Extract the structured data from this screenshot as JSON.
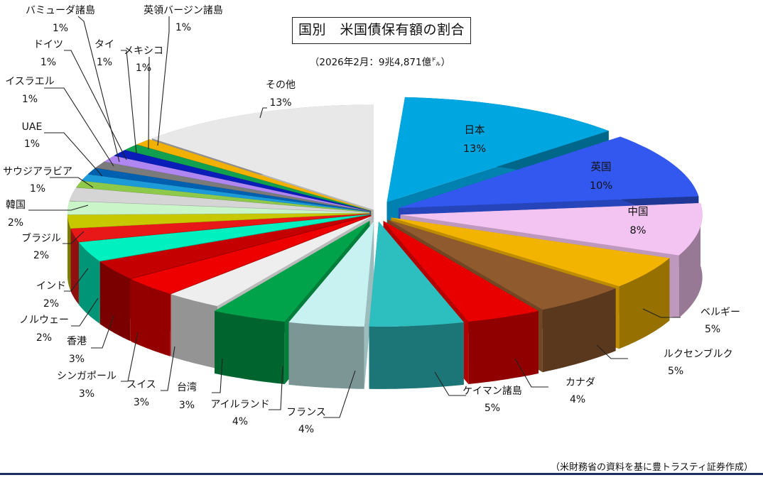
{
  "chart_data": {
    "type": "pie",
    "title": "国別　米国債保有額の割合",
    "subtitle": "（2026年2月：9兆4,871億㌦）",
    "unit": "%",
    "categories": [
      "日本",
      "英国",
      "中国",
      "ベルギー",
      "ルクセンブルク",
      "カナダ",
      "ケイマン諸島",
      "フランス",
      "アイルランド",
      "台湾",
      "スイス",
      "シンガポール",
      "香港",
      "ノルウェー",
      "インド",
      "ブラジル",
      "韓国",
      "サウジアラビア",
      "UAE",
      "イスラエル",
      "ドイツ",
      "タイ",
      "メキシコ",
      "英領バージン諸島",
      "バミューダ諸島",
      "その他"
    ],
    "values": [
      13,
      10,
      8,
      5,
      5,
      4,
      5,
      4,
      4,
      3,
      3,
      3,
      3,
      2,
      2,
      2,
      2,
      1,
      1,
      1,
      1,
      1,
      1,
      1,
      1,
      13
    ],
    "value_labels": [
      "13%",
      "10%",
      "8%",
      "5%",
      "5%",
      "4%",
      "5%",
      "4%",
      "4%",
      "3%",
      "3%",
      "3%",
      "3%",
      "2%",
      "2%",
      "2%",
      "2%",
      "1%",
      "1%",
      "1%",
      "1%",
      "1%",
      "1%",
      "1%",
      "1%",
      "13%"
    ],
    "source_note": "（米財務省の資料を基に豊トラスティ証券作成）"
  },
  "colors": [
    "#00a6e0",
    "#3258f0",
    "#f3c3f2",
    "#f2b400",
    "#8f5a2e",
    "#e80000",
    "#2dbfc0",
    "#c8f2f2",
    "#00a24a",
    "#eeeeee",
    "#ee0000",
    "#c40000",
    "#00f0c0",
    "#e81818",
    "#c8c800",
    "#c9f5c9",
    "#d5d5d5",
    "#8ec94a",
    "#1d9ad8",
    "#0060b0",
    "#7b7b7b",
    "#b087f0",
    "#0a1db8",
    "#10a050",
    "#f2b000",
    "#e8e8e8"
  ]
}
